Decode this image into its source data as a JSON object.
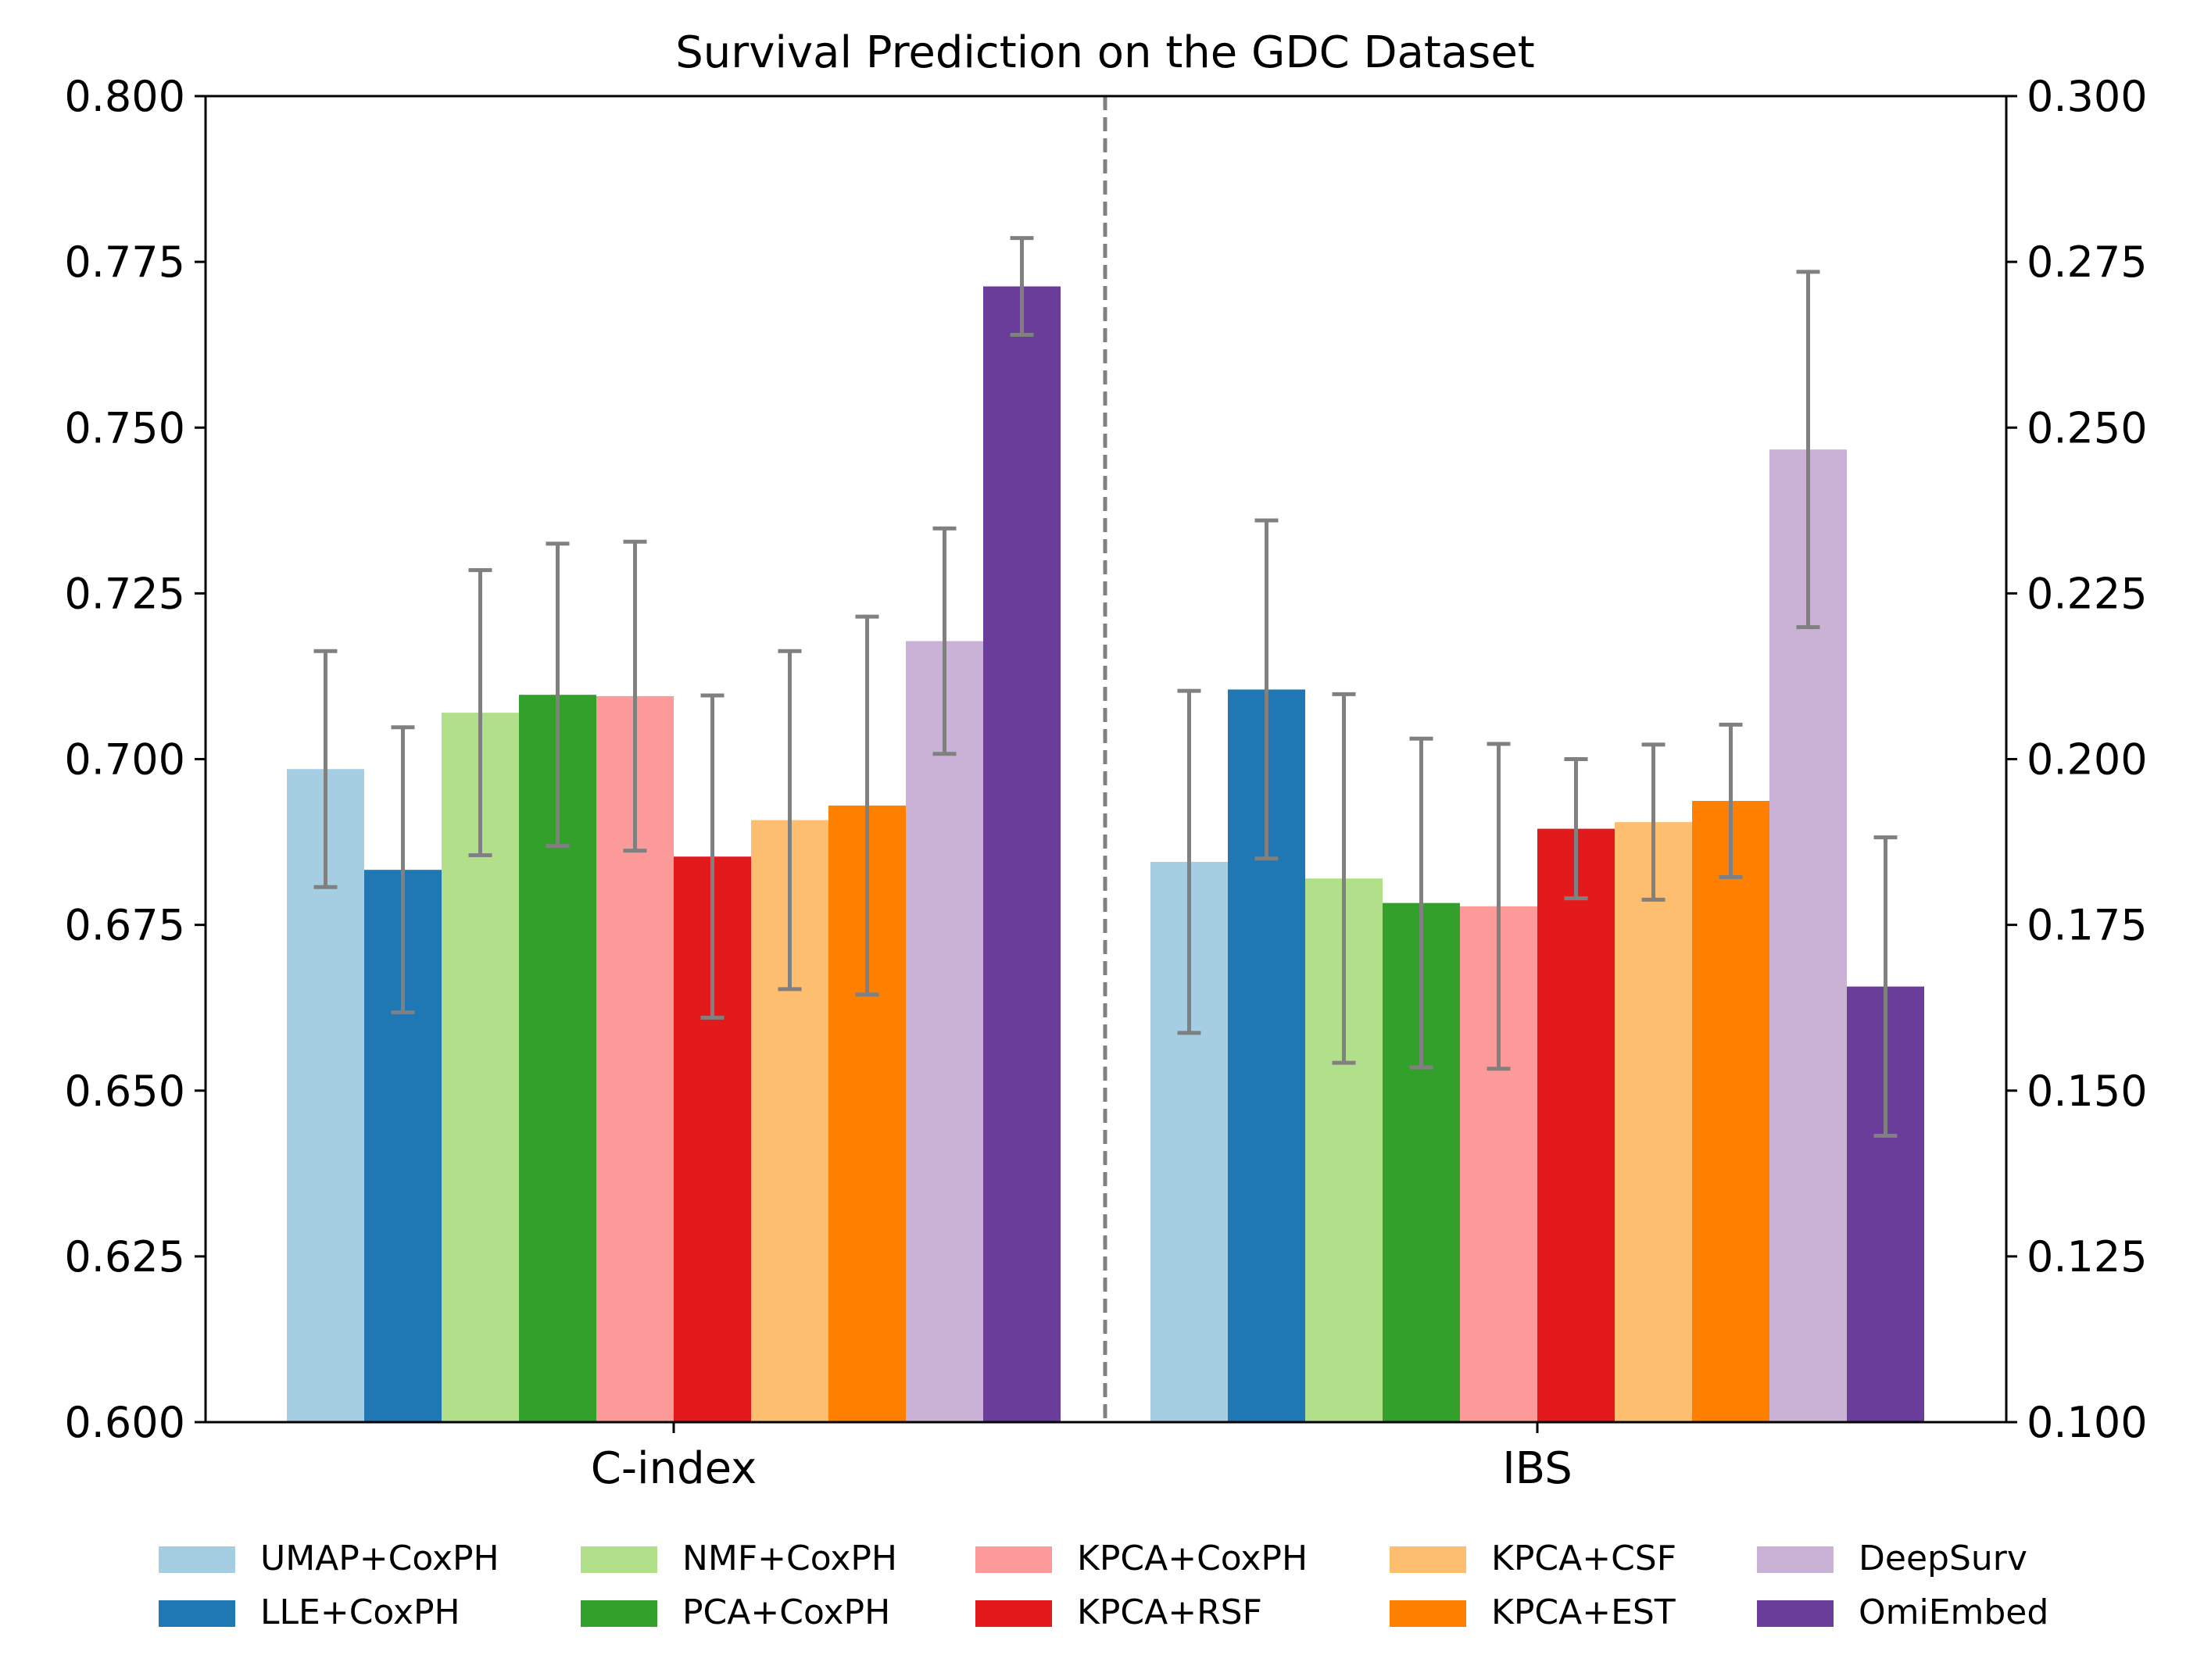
{
  "chart_data": {
    "type": "bar",
    "title": "Survival Prediction on the GDC Dataset",
    "categories": [
      "C-index",
      "IBS"
    ],
    "left_axis": {
      "metric": "C-index",
      "ylim": [
        0.6,
        0.8
      ],
      "ticks": [
        "0.600",
        "0.625",
        "0.650",
        "0.675",
        "0.700",
        "0.725",
        "0.750",
        "0.775",
        "0.800"
      ]
    },
    "right_axis": {
      "metric": "IBS",
      "ylim": [
        0.1,
        0.3
      ],
      "ticks": [
        "0.100",
        "0.125",
        "0.150",
        "0.175",
        "0.200",
        "0.225",
        "0.250",
        "0.275",
        "0.300"
      ]
    },
    "divider": "dashed",
    "error_bar_color": "#808080",
    "series": [
      {
        "name": "UMAP+CoxPH",
        "color": "#a6cee3",
        "cindex": 0.6985,
        "cindex_err": 0.0178,
        "ibs": 0.1845,
        "ibs_err": 0.0258
      },
      {
        "name": "LLE+CoxPH",
        "color": "#1f78b4",
        "cindex": 0.6833,
        "cindex_err": 0.0215,
        "ibs": 0.2105,
        "ibs_err": 0.0255
      },
      {
        "name": "NMF+CoxPH",
        "color": "#b2df8a",
        "cindex": 0.707,
        "cindex_err": 0.0215,
        "ibs": 0.182,
        "ibs_err": 0.0278
      },
      {
        "name": "PCA+CoxPH",
        "color": "#33a02c",
        "cindex": 0.7097,
        "cindex_err": 0.0228,
        "ibs": 0.1783,
        "ibs_err": 0.0248
      },
      {
        "name": "KPCA+CoxPH",
        "color": "#fb9a99",
        "cindex": 0.7095,
        "cindex_err": 0.0233,
        "ibs": 0.1778,
        "ibs_err": 0.0245
      },
      {
        "name": "KPCA+RSF",
        "color": "#e31a1c",
        "cindex": 0.6853,
        "cindex_err": 0.0243,
        "ibs": 0.1895,
        "ibs_err": 0.0105
      },
      {
        "name": "KPCA+CSF",
        "color": "#fdbf6f",
        "cindex": 0.6908,
        "cindex_err": 0.0255,
        "ibs": 0.1905,
        "ibs_err": 0.0117
      },
      {
        "name": "KPCA+EST",
        "color": "#ff7f00",
        "cindex": 0.693,
        "cindex_err": 0.0285,
        "ibs": 0.1937,
        "ibs_err": 0.0115
      },
      {
        "name": "DeepSurv",
        "color": "#cab2d6",
        "cindex": 0.7178,
        "cindex_err": 0.017,
        "ibs": 0.2467,
        "ibs_err": 0.0268
      },
      {
        "name": "OmiEmbed",
        "color": "#6a3d9a",
        "cindex": 0.7713,
        "cindex_err": 0.0073,
        "ibs": 0.1657,
        "ibs_err": 0.0225
      }
    ]
  }
}
